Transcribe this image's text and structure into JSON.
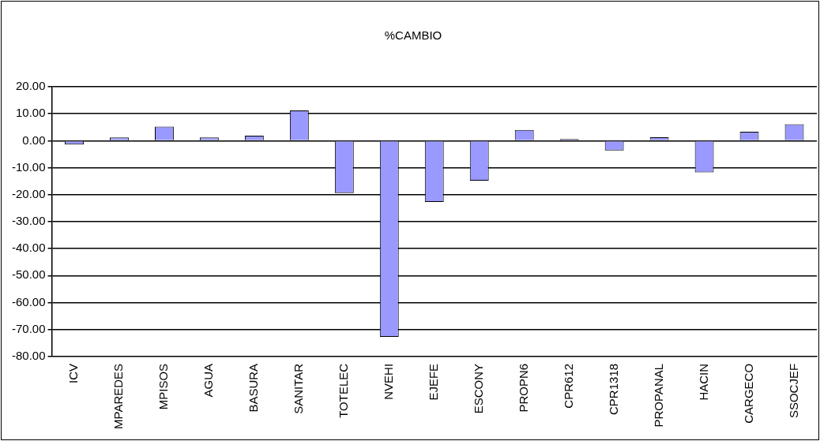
{
  "chart_data": {
    "type": "bar",
    "title": "%CAMBIO",
    "categories": [
      "ICV",
      "MPAREDES",
      "MPISOS",
      "AGUA",
      "BASURA",
      "SANITAR",
      "TOTELEC",
      "NVEHI",
      "EJEFE",
      "ESCONY",
      "PROPN6",
      "CPR612",
      "CPR1318",
      "PROPANAL",
      "HACIN",
      "CARGECO",
      "SSOCJEF"
    ],
    "values": [
      -1.4,
      1.2,
      5.2,
      1.2,
      1.9,
      11.2,
      -19.4,
      -72.7,
      -22.7,
      -14.8,
      4.0,
      0.6,
      -3.6,
      1.3,
      -11.7,
      3.3,
      6.1
    ],
    "color": "#9999ff",
    "ylim": [
      -80,
      20
    ],
    "yticks": [
      {
        "value": -80,
        "label": "-80.00"
      },
      {
        "value": -70,
        "label": "-70.00"
      },
      {
        "value": -60,
        "label": "-60.00"
      },
      {
        "value": -50,
        "label": "-50.00"
      },
      {
        "value": -40,
        "label": "-40.00"
      },
      {
        "value": -30,
        "label": "-30.00"
      },
      {
        "value": -20,
        "label": "-20.00"
      },
      {
        "value": -10,
        "label": "-10.00"
      },
      {
        "value": 0,
        "label": "0.00"
      },
      {
        "value": 10,
        "label": "10.00"
      },
      {
        "value": 20,
        "label": "20.00"
      }
    ],
    "grid": "y",
    "legend": false
  }
}
